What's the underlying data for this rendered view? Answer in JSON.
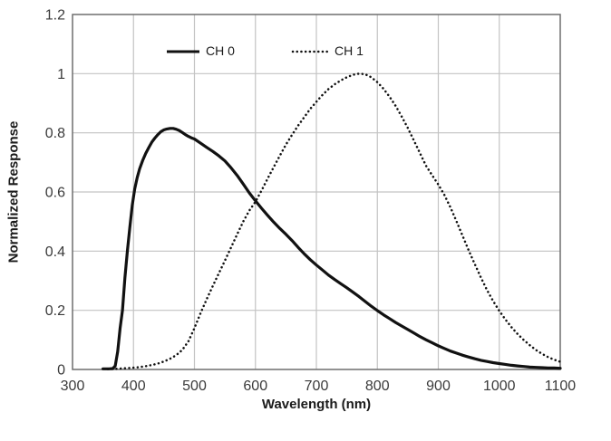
{
  "colors": {
    "curve": "#111111",
    "grid": "#c3c3c3",
    "frame": "#6e6e6e",
    "tick_text": "#3a3a3a",
    "title_text": "#1a1a1a",
    "background": "#ffffff"
  },
  "chart_data": {
    "type": "line",
    "title": "",
    "xlabel": "Wavelength (nm)",
    "ylabel": "Normalized Response",
    "xlim": [
      300,
      1100
    ],
    "ylim": [
      0,
      1.2
    ],
    "grid": true,
    "legend_position": "top-inside",
    "xticks": [
      {
        "value": 300,
        "label": "300"
      },
      {
        "value": 400,
        "label": "400"
      },
      {
        "value": 500,
        "label": "500"
      },
      {
        "value": 600,
        "label": "600"
      },
      {
        "value": 700,
        "label": "700"
      },
      {
        "value": 800,
        "label": "800"
      },
      {
        "value": 900,
        "label": "900"
      },
      {
        "value": 1000,
        "label": "1000"
      },
      {
        "value": 1100,
        "label": "1100"
      }
    ],
    "yticks": [
      {
        "value": 0,
        "label": "0"
      },
      {
        "value": 0.2,
        "label": "0.2"
      },
      {
        "value": 0.4,
        "label": "0.4"
      },
      {
        "value": 0.6,
        "label": "0.6"
      },
      {
        "value": 0.8,
        "label": "0.8"
      },
      {
        "value": 1,
        "label": "1"
      },
      {
        "value": 1.2,
        "label": "1.2"
      }
    ],
    "series": [
      {
        "name": "CH 0",
        "line_style": "solid",
        "color": "#111111",
        "points": [
          [
            350,
            0.002
          ],
          [
            360,
            0.002
          ],
          [
            366,
            0.003
          ],
          [
            370,
            0.012
          ],
          [
            374,
            0.06
          ],
          [
            378,
            0.14
          ],
          [
            382,
            0.2
          ],
          [
            386,
            0.31
          ],
          [
            390,
            0.4
          ],
          [
            394,
            0.48
          ],
          [
            398,
            0.555
          ],
          [
            402,
            0.61
          ],
          [
            406,
            0.648
          ],
          [
            410,
            0.678
          ],
          [
            415,
            0.706
          ],
          [
            420,
            0.73
          ],
          [
            425,
            0.75
          ],
          [
            430,
            0.768
          ],
          [
            435,
            0.782
          ],
          [
            440,
            0.794
          ],
          [
            445,
            0.804
          ],
          [
            450,
            0.81
          ],
          [
            455,
            0.813
          ],
          [
            460,
            0.815
          ],
          [
            465,
            0.815
          ],
          [
            470,
            0.812
          ],
          [
            475,
            0.808
          ],
          [
            480,
            0.801
          ],
          [
            485,
            0.794
          ],
          [
            490,
            0.788
          ],
          [
            495,
            0.783
          ],
          [
            500,
            0.779
          ],
          [
            510,
            0.765
          ],
          [
            520,
            0.751
          ],
          [
            530,
            0.737
          ],
          [
            540,
            0.722
          ],
          [
            550,
            0.705
          ],
          [
            560,
            0.682
          ],
          [
            570,
            0.656
          ],
          [
            580,
            0.627
          ],
          [
            590,
            0.597
          ],
          [
            600,
            0.57
          ],
          [
            610,
            0.545
          ],
          [
            620,
            0.521
          ],
          [
            630,
            0.498
          ],
          [
            640,
            0.477
          ],
          [
            650,
            0.457
          ],
          [
            660,
            0.436
          ],
          [
            670,
            0.413
          ],
          [
            680,
            0.391
          ],
          [
            690,
            0.371
          ],
          [
            700,
            0.353
          ],
          [
            710,
            0.336
          ],
          [
            720,
            0.319
          ],
          [
            730,
            0.304
          ],
          [
            740,
            0.29
          ],
          [
            750,
            0.276
          ],
          [
            760,
            0.261
          ],
          [
            770,
            0.246
          ],
          [
            780,
            0.23
          ],
          [
            790,
            0.214
          ],
          [
            800,
            0.199
          ],
          [
            810,
            0.185
          ],
          [
            820,
            0.172
          ],
          [
            830,
            0.159
          ],
          [
            840,
            0.147
          ],
          [
            850,
            0.135
          ],
          [
            860,
            0.123
          ],
          [
            870,
            0.111
          ],
          [
            880,
            0.1
          ],
          [
            890,
            0.09
          ],
          [
            900,
            0.08
          ],
          [
            910,
            0.071
          ],
          [
            920,
            0.062
          ],
          [
            930,
            0.055
          ],
          [
            940,
            0.048
          ],
          [
            950,
            0.042
          ],
          [
            960,
            0.036
          ],
          [
            970,
            0.031
          ],
          [
            980,
            0.027
          ],
          [
            990,
            0.023
          ],
          [
            1000,
            0.02
          ],
          [
            1010,
            0.017
          ],
          [
            1020,
            0.014
          ],
          [
            1030,
            0.012
          ],
          [
            1040,
            0.01
          ],
          [
            1050,
            0.008
          ],
          [
            1060,
            0.007
          ],
          [
            1070,
            0.006
          ],
          [
            1080,
            0.005
          ],
          [
            1090,
            0.005
          ],
          [
            1100,
            0.004
          ]
        ]
      },
      {
        "name": "CH 1",
        "line_style": "dotted",
        "color": "#111111",
        "points": [
          [
            358,
            0.001
          ],
          [
            370,
            0.002
          ],
          [
            385,
            0.004
          ],
          [
            400,
            0.006
          ],
          [
            410,
            0.008
          ],
          [
            420,
            0.011
          ],
          [
            430,
            0.015
          ],
          [
            440,
            0.02
          ],
          [
            450,
            0.027
          ],
          [
            460,
            0.036
          ],
          [
            470,
            0.048
          ],
          [
            480,
            0.066
          ],
          [
            490,
            0.095
          ],
          [
            500,
            0.14
          ],
          [
            510,
            0.19
          ],
          [
            520,
            0.237
          ],
          [
            530,
            0.282
          ],
          [
            540,
            0.325
          ],
          [
            550,
            0.368
          ],
          [
            560,
            0.412
          ],
          [
            570,
            0.457
          ],
          [
            580,
            0.5
          ],
          [
            590,
            0.537
          ],
          [
            600,
            0.567
          ],
          [
            610,
            0.605
          ],
          [
            620,
            0.645
          ],
          [
            630,
            0.684
          ],
          [
            640,
            0.722
          ],
          [
            650,
            0.76
          ],
          [
            660,
            0.793
          ],
          [
            670,
            0.824
          ],
          [
            680,
            0.853
          ],
          [
            690,
            0.881
          ],
          [
            700,
            0.905
          ],
          [
            710,
            0.928
          ],
          [
            720,
            0.948
          ],
          [
            730,
            0.964
          ],
          [
            740,
            0.977
          ],
          [
            750,
            0.988
          ],
          [
            760,
            0.996
          ],
          [
            770,
            1.0
          ],
          [
            780,
            0.998
          ],
          [
            790,
            0.988
          ],
          [
            800,
            0.971
          ],
          [
            810,
            0.949
          ],
          [
            820,
            0.922
          ],
          [
            830,
            0.891
          ],
          [
            840,
            0.855
          ],
          [
            850,
            0.816
          ],
          [
            860,
            0.774
          ],
          [
            870,
            0.731
          ],
          [
            880,
            0.688
          ],
          [
            890,
            0.656
          ],
          [
            900,
            0.625
          ],
          [
            910,
            0.59
          ],
          [
            920,
            0.548
          ],
          [
            930,
            0.5
          ],
          [
            940,
            0.451
          ],
          [
            950,
            0.402
          ],
          [
            960,
            0.355
          ],
          [
            970,
            0.31
          ],
          [
            980,
            0.268
          ],
          [
            990,
            0.231
          ],
          [
            1000,
            0.198
          ],
          [
            1010,
            0.169
          ],
          [
            1020,
            0.143
          ],
          [
            1030,
            0.12
          ],
          [
            1040,
            0.1
          ],
          [
            1050,
            0.082
          ],
          [
            1060,
            0.066
          ],
          [
            1070,
            0.053
          ],
          [
            1080,
            0.042
          ],
          [
            1090,
            0.033
          ],
          [
            1100,
            0.026
          ]
        ]
      }
    ]
  }
}
